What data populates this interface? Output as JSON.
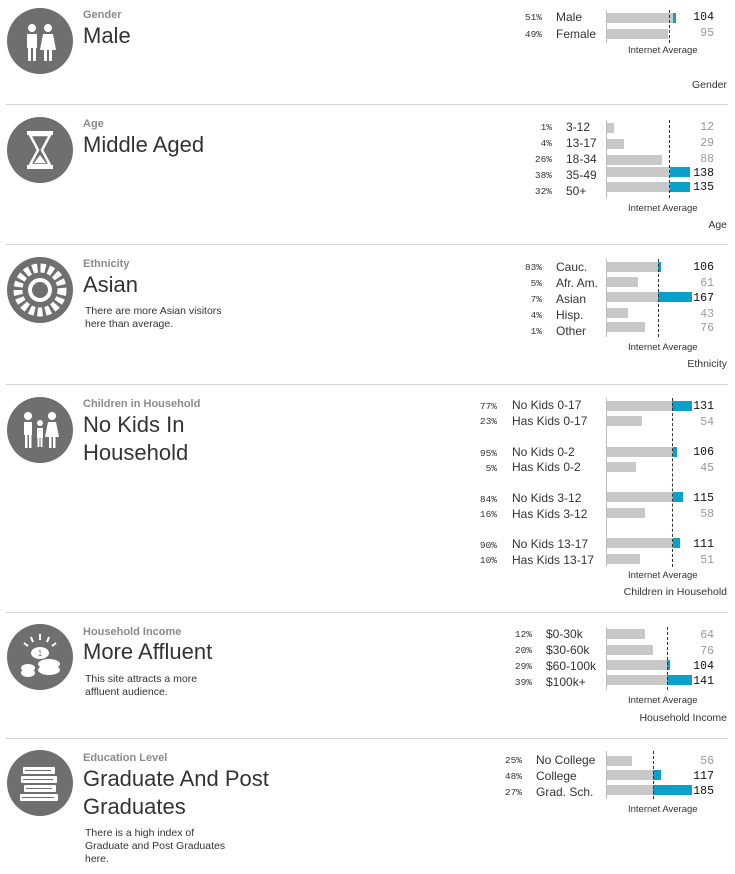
{
  "common": {
    "internet_average": "Internet Average"
  },
  "sections": [
    {
      "category": "Gender",
      "value": "Male",
      "tag": "Gender",
      "icon": "gender-icon",
      "rows": [
        {
          "pct": "51%",
          "label": "Male",
          "index": 104
        },
        {
          "pct": "49%",
          "label": "Female",
          "index": 95
        }
      ]
    },
    {
      "category": "Age",
      "value": "Middle Aged",
      "tag": "Age",
      "icon": "hourglass-icon",
      "rows": [
        {
          "pct": "1%",
          "label": "3-12",
          "index": 12
        },
        {
          "pct": "4%",
          "label": "13-17",
          "index": 29
        },
        {
          "pct": "26%",
          "label": "18-34",
          "index": 88
        },
        {
          "pct": "38%",
          "label": "35-49",
          "index": 138
        },
        {
          "pct": "32%",
          "label": "50+",
          "index": 135
        }
      ]
    },
    {
      "category": "Ethnicity",
      "value": "Asian",
      "tag": "Ethnicity",
      "icon": "ethnicity-wheel-icon",
      "description": "There are more Asian visitors here than average.",
      "rows": [
        {
          "pct": "83%",
          "label": "Cauc.",
          "index": 106
        },
        {
          "pct": "5%",
          "label": "Afr. Am.",
          "index": 61
        },
        {
          "pct": "7%",
          "label": "Asian",
          "index": 167
        },
        {
          "pct": "4%",
          "label": "Hisp.",
          "index": 43
        },
        {
          "pct": "1%",
          "label": "Other",
          "index": 76
        }
      ]
    },
    {
      "category": "Children in Household",
      "value": "No Kids In Household",
      "tag": "Children in Household",
      "icon": "family-icon",
      "rows": [
        {
          "pct": "77%",
          "label": "No Kids 0-17",
          "index": 131
        },
        {
          "pct": "23%",
          "label": "Has Kids 0-17",
          "index": 54
        },
        {
          "pct": "95%",
          "label": "No Kids 0-2",
          "index": 106
        },
        {
          "pct": "5%",
          "label": "Has Kids 0-2",
          "index": 45
        },
        {
          "pct": "84%",
          "label": "No Kids 3-12",
          "index": 115
        },
        {
          "pct": "16%",
          "label": "Has Kids 3-12",
          "index": 58
        },
        {
          "pct": "90%",
          "label": "No Kids 13-17",
          "index": 111
        },
        {
          "pct": "10%",
          "label": "Has Kids 13-17",
          "index": 51
        }
      ]
    },
    {
      "category": "Household Income",
      "value": "More Affluent",
      "tag": "Household Income",
      "icon": "coins-icon",
      "description": "This site attracts a more affluent audience.",
      "rows": [
        {
          "pct": "12%",
          "label": "$0-30k",
          "index": 64
        },
        {
          "pct": "20%",
          "label": "$30-60k",
          "index": 76
        },
        {
          "pct": "29%",
          "label": "$60-100k",
          "index": 104
        },
        {
          "pct": "39%",
          "label": "$100k+",
          "index": 141
        }
      ]
    },
    {
      "category": "Education Level",
      "value": "Graduate And Post Graduates",
      "tag": "",
      "icon": "books-icon",
      "description": "There is a high index of Graduate and Post Graduates here.",
      "rows": [
        {
          "pct": "25%",
          "label": "No College",
          "index": 56
        },
        {
          "pct": "48%",
          "label": "College",
          "index": 117
        },
        {
          "pct": "27%",
          "label": "Grad. Sch.",
          "index": 185
        }
      ]
    }
  ]
}
